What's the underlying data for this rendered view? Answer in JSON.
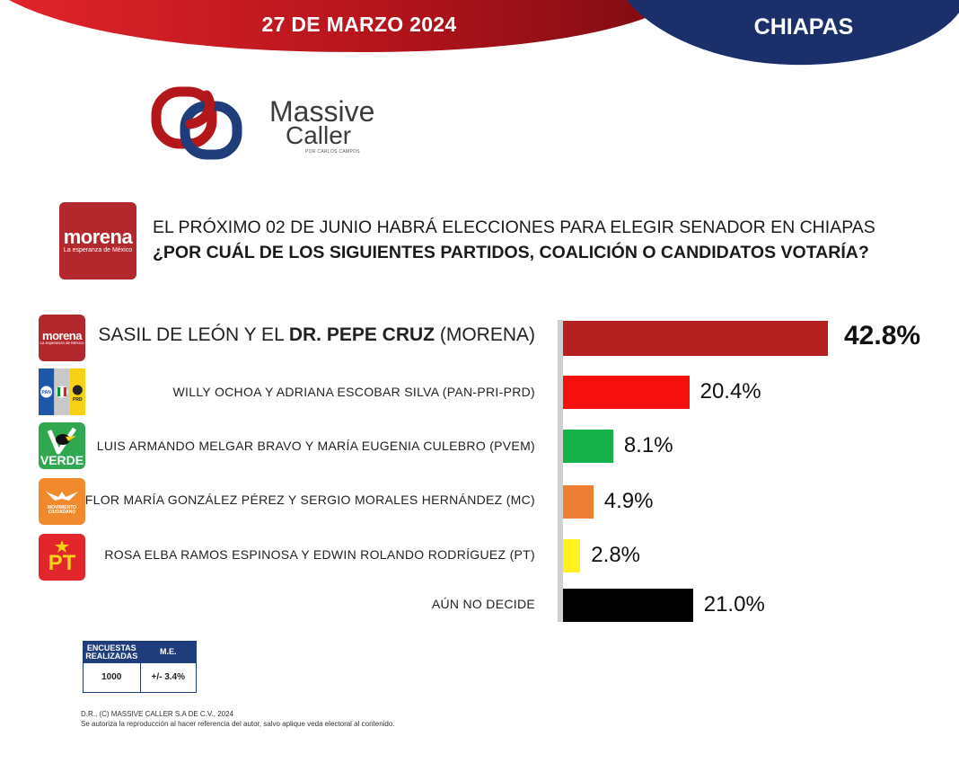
{
  "header": {
    "date": "27 DE MARZO 2024",
    "state": "CHIAPAS",
    "colors": {
      "red": "#b3171b",
      "navy": "#1b2f6b"
    }
  },
  "logo": {
    "line1": "Massive",
    "line2": "Caller",
    "subtitle": "POR CARLOS CAMPOS"
  },
  "question": {
    "party_badge": {
      "name": "morena",
      "tagline": "La esperanza de México"
    },
    "line1": "EL PRÓXIMO 02 DE JUNIO HABRÁ ELECCIONES PARA ELEGIR SENADOR EN CHIAPAS",
    "line2": "¿POR CUÁL DE LOS SIGUIENTES PARTIDOS, COALICIÓN O CANDIDATOS VOTARÍA?"
  },
  "chart_data": {
    "type": "bar",
    "orientation": "horizontal",
    "categories": [
      "SASIL DE LEÓN Y EL DR. PEPE CRUZ (MORENA)",
      "WILLY OCHOA Y ADRIANA ESCOBAR SILVA (PAN-PRI-PRD)",
      "LUIS ARMANDO MELGAR BRAVO Y MARÍA EUGENIA CULEBRO (PVEM)",
      "FLOR MARÍA GONZÁLEZ PÉREZ Y SERGIO MORALES HERNÁNDEZ (MC)",
      "ROSA ELBA RAMOS ESPINOSA Y EDWIN ROLANDO RODRÍGUEZ (PT)",
      "AÚN NO DECIDE"
    ],
    "label_parts": [
      {
        "pre": "SASIL DE LEÓN Y EL ",
        "bold": "DR. PEPE CRUZ",
        "post": " (MORENA)"
      }
    ],
    "values": [
      42.8,
      20.4,
      8.1,
      4.9,
      2.8,
      21.0
    ],
    "value_labels": [
      "42.8%",
      "20.4%",
      "8.1%",
      "4.9%",
      "2.8%",
      "21.0%"
    ],
    "colors": [
      "#b3201f",
      "#f60f0f",
      "#15b24a",
      "#ed7e34",
      "#fff21f",
      "#000000"
    ],
    "units": "%"
  },
  "party_badges": {
    "morena": {
      "word": "morena",
      "tagline": "La esperanza de México",
      "color": "#b3282d"
    },
    "coalition": {
      "pan": "PAN",
      "prd": "PRD"
    },
    "verde": {
      "word": "VERDE",
      "color": "#2fa84f"
    },
    "mc": {
      "line1": "MOVIMIENTO",
      "line2": "CIUDADANO",
      "color": "#f08a2c"
    },
    "pt": {
      "word": "PT",
      "color": "#e3262c"
    }
  },
  "survey_table": {
    "header_col1": "ENCUESTAS REALIZADAS",
    "header_col2": "M.E.",
    "value_col1": "1000",
    "value_col2": "+/- 3.4%"
  },
  "footer": {
    "line1": "D.R., (C) MASSIVE CALLER S.A DE C.V., 2024",
    "line2": "Se autoriza la reproducción al hacer referencia del autor, salvo aplique veda electoral al contenido."
  }
}
